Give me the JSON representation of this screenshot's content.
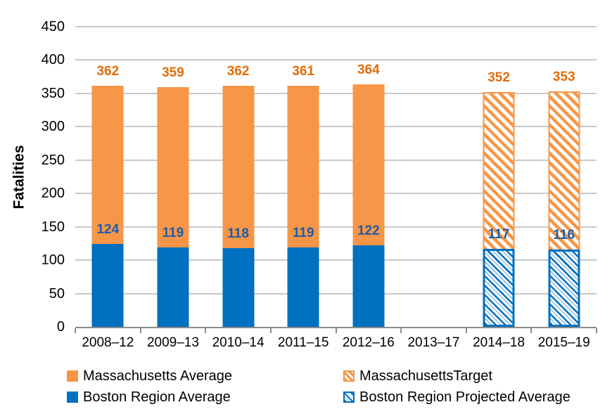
{
  "palette": {
    "orange": "#F79646",
    "blue": "#0070C0",
    "orange_label": "#E36C09",
    "blue_label": "#1F5CA8",
    "gridline": "#C9C9C9",
    "axis": "#8C8C8C",
    "text": "#000000",
    "background": "#FFFFFF"
  },
  "chart_data": {
    "type": "bar",
    "title": "",
    "xlabel": "",
    "ylabel": "Fatalities",
    "ylim": [
      0,
      450
    ],
    "ytick_step": 50,
    "yticks": [
      450,
      400,
      350,
      300,
      250,
      200,
      150,
      100,
      50,
      0
    ],
    "grid": true,
    "legend_position": "bottom",
    "bar_mode": "overlap",
    "categories": [
      "2008–12",
      "2009–13",
      "2010–14",
      "2011–15",
      "2012–16",
      "2013–17",
      "2014–18",
      "2015–19"
    ],
    "series": [
      {
        "name": "Massachusetts Average",
        "style": "solid-orange",
        "label_style": "label-orange",
        "values": [
          362,
          359,
          362,
          361,
          364,
          null,
          null,
          null
        ]
      },
      {
        "name": "MassachusettsTarget",
        "style": "hatched-orange",
        "label_style": "label-orange",
        "values": [
          null,
          null,
          null,
          null,
          null,
          null,
          352,
          353
        ]
      },
      {
        "name": "Boston Region Average",
        "style": "solid-blue",
        "label_style": "label-blue",
        "values": [
          124,
          119,
          118,
          119,
          122,
          null,
          null,
          null
        ]
      },
      {
        "name": "Boston Region Projected Average",
        "style": "hatched-blue",
        "label_style": "label-blue",
        "values": [
          null,
          null,
          null,
          null,
          null,
          null,
          117,
          116
        ]
      }
    ]
  },
  "legend": {
    "items": [
      {
        "label": "Massachusetts Average",
        "swatch": "solid-orange"
      },
      {
        "label": "MassachusettsTarget",
        "swatch": "hatched-orange"
      },
      {
        "label": "Boston Region Average",
        "swatch": "solid-blue"
      },
      {
        "label": "Boston Region Projected Average",
        "swatch": "hatched-blue"
      }
    ]
  }
}
